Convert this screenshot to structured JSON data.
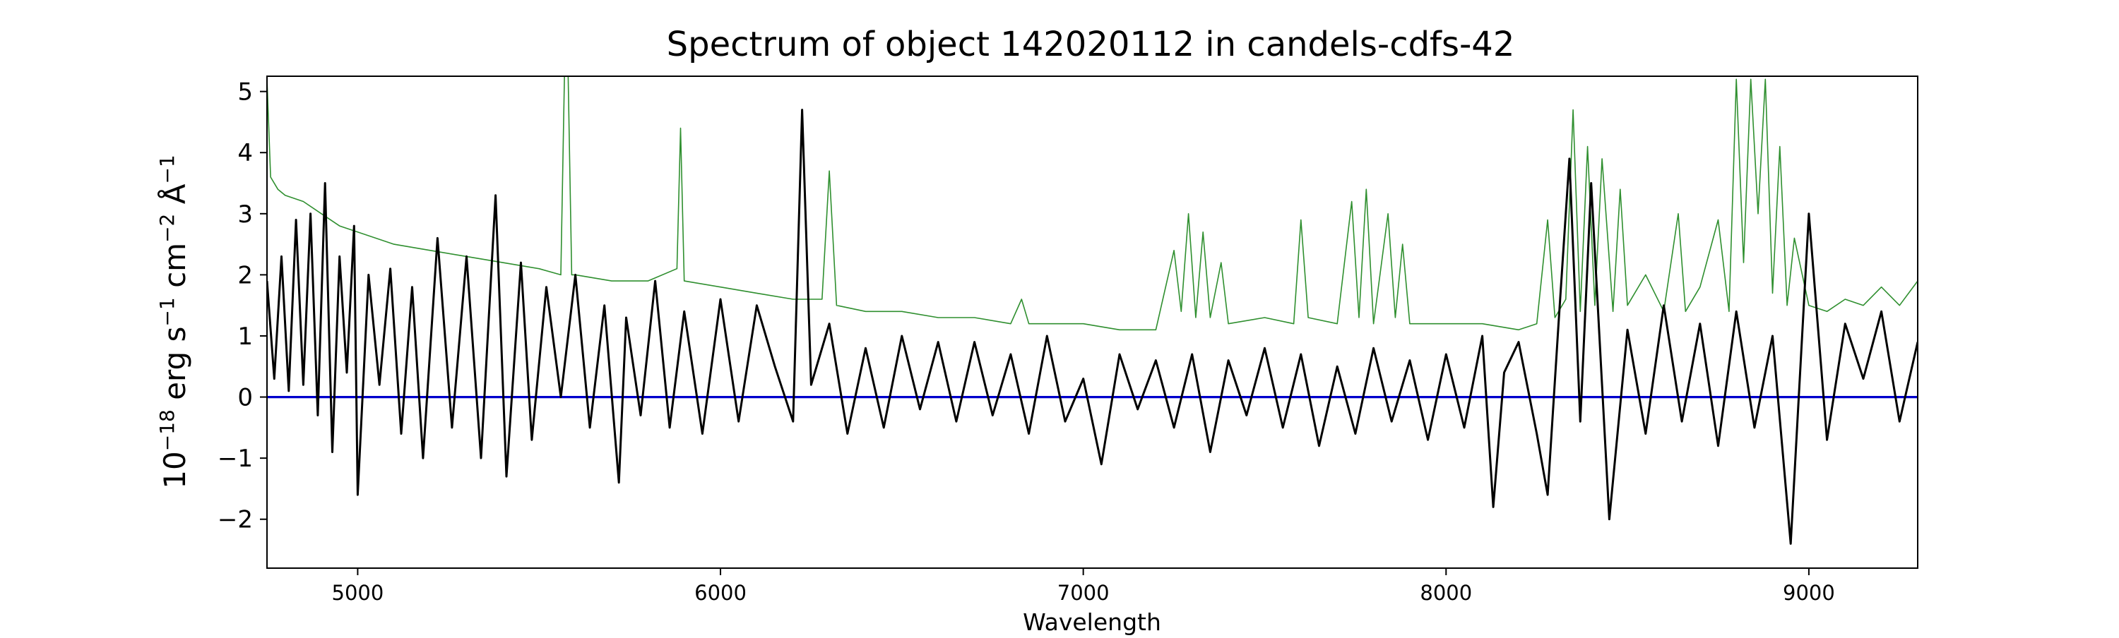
{
  "chart_data": {
    "type": "line",
    "title": "Spectrum of object 142020112 in candels-cdfs-42",
    "xlabel": "Wavelength",
    "ylabel": {
      "base": "10",
      "exp1": "−18",
      "mid1": " erg s",
      "exp2": "−1",
      "mid2": " cm",
      "exp3": "−2",
      "mid3": " Å",
      "exp4": "−1"
    },
    "xlim": [
      4750,
      9300
    ],
    "ylim": [
      -2.8,
      5.25
    ],
    "xticks": [
      5000,
      6000,
      7000,
      8000,
      9000
    ],
    "yticks": [
      -2,
      -1,
      0,
      1,
      2,
      3,
      4,
      5
    ],
    "ytick_labels": [
      "−2",
      "−1",
      "0",
      "1",
      "2",
      "3",
      "4",
      "5"
    ],
    "grid": false,
    "legend": false,
    "series": [
      {
        "role": "flux",
        "color": "#000000",
        "x": [
          4750,
          4770,
          4790,
          4810,
          4830,
          4850,
          4870,
          4890,
          4910,
          4930,
          4950,
          4970,
          4990,
          5000,
          5030,
          5060,
          5090,
          5120,
          5150,
          5180,
          5220,
          5260,
          5300,
          5340,
          5380,
          5410,
          5450,
          5480,
          5520,
          5560,
          5600,
          5640,
          5680,
          5720,
          5740,
          5780,
          5820,
          5860,
          5900,
          5950,
          6000,
          6050,
          6100,
          6150,
          6200,
          6225,
          6250,
          6300,
          6350,
          6400,
          6450,
          6500,
          6550,
          6600,
          6650,
          6700,
          6750,
          6800,
          6850,
          6900,
          6950,
          7000,
          7050,
          7100,
          7150,
          7200,
          7250,
          7300,
          7350,
          7400,
          7450,
          7500,
          7550,
          7600,
          7650,
          7700,
          7750,
          7800,
          7850,
          7900,
          7950,
          8000,
          8050,
          8100,
          8130,
          8160,
          8200,
          8250,
          8280,
          8310,
          8340,
          8370,
          8400,
          8430,
          8450,
          8500,
          8550,
          8600,
          8650,
          8700,
          8750,
          8800,
          8850,
          8900,
          8950,
          9000,
          9050,
          9100,
          9150,
          9200,
          9250,
          9300
        ],
        "y": [
          1.9,
          0.3,
          2.3,
          0.1,
          2.9,
          0.2,
          3.0,
          -0.3,
          3.5,
          -0.9,
          2.3,
          0.4,
          2.8,
          -1.6,
          2.0,
          0.2,
          2.1,
          -0.6,
          1.8,
          -1.0,
          2.6,
          -0.5,
          2.3,
          -1.0,
          3.3,
          -1.3,
          2.2,
          -0.7,
          1.8,
          0.0,
          2.0,
          -0.5,
          1.5,
          -1.4,
          1.3,
          -0.3,
          1.9,
          -0.5,
          1.4,
          -0.6,
          1.6,
          -0.4,
          1.5,
          0.5,
          -0.4,
          4.7,
          0.2,
          1.2,
          -0.6,
          0.8,
          -0.5,
          1.0,
          -0.2,
          0.9,
          -0.4,
          0.9,
          -0.3,
          0.7,
          -0.6,
          1.0,
          -0.4,
          0.3,
          -1.1,
          0.7,
          -0.2,
          0.6,
          -0.5,
          0.7,
          -0.9,
          0.6,
          -0.3,
          0.8,
          -0.5,
          0.7,
          -0.8,
          0.5,
          -0.6,
          0.8,
          -0.4,
          0.6,
          -0.7,
          0.7,
          -0.5,
          1.0,
          -1.8,
          0.4,
          0.9,
          -0.6,
          -1.6,
          1.2,
          3.9,
          -0.4,
          3.5,
          0.2,
          -2.0,
          1.1,
          -0.6,
          1.5,
          -0.4,
          1.2,
          -0.8,
          1.4,
          -0.5,
          1.0,
          -2.4,
          3.0,
          -0.7,
          1.2,
          0.3,
          1.4,
          -0.4,
          0.9
        ]
      },
      {
        "role": "noise",
        "color": "#2f8f2f",
        "x": [
          4750,
          4760,
          4780,
          4800,
          4850,
          4900,
          4950,
          5000,
          5100,
          5200,
          5300,
          5400,
          5500,
          5560,
          5570,
          5580,
          5590,
          5600,
          5700,
          5800,
          5880,
          5890,
          5900,
          6000,
          6100,
          6200,
          6280,
          6300,
          6320,
          6400,
          6500,
          6600,
          6700,
          6800,
          6830,
          6850,
          6900,
          7000,
          7100,
          7200,
          7250,
          7270,
          7290,
          7310,
          7330,
          7350,
          7380,
          7400,
          7500,
          7580,
          7600,
          7620,
          7700,
          7740,
          7760,
          7780,
          7800,
          7840,
          7860,
          7880,
          7900,
          8000,
          8100,
          8200,
          8250,
          8280,
          8300,
          8330,
          8350,
          8370,
          8390,
          8410,
          8430,
          8460,
          8480,
          8500,
          8550,
          8600,
          8640,
          8660,
          8700,
          8750,
          8780,
          8800,
          8820,
          8840,
          8860,
          8880,
          8900,
          8920,
          8940,
          8960,
          9000,
          9050,
          9100,
          9150,
          9200,
          9250,
          9300
        ],
        "y": [
          5.2,
          3.6,
          3.4,
          3.3,
          3.2,
          3.0,
          2.8,
          2.7,
          2.5,
          2.4,
          2.3,
          2.2,
          2.1,
          2.0,
          5.3,
          5.3,
          2.0,
          2.0,
          1.9,
          1.9,
          2.1,
          4.4,
          1.9,
          1.8,
          1.7,
          1.6,
          1.6,
          3.7,
          1.5,
          1.4,
          1.4,
          1.3,
          1.3,
          1.2,
          1.6,
          1.2,
          1.2,
          1.2,
          1.1,
          1.1,
          2.4,
          1.4,
          3.0,
          1.3,
          2.7,
          1.3,
          2.2,
          1.2,
          1.3,
          1.2,
          2.9,
          1.3,
          1.2,
          3.2,
          1.3,
          3.4,
          1.2,
          3.0,
          1.3,
          2.5,
          1.2,
          1.2,
          1.2,
          1.1,
          1.2,
          2.9,
          1.3,
          1.6,
          4.7,
          1.4,
          4.1,
          1.5,
          3.9,
          1.4,
          3.4,
          1.5,
          2.0,
          1.4,
          3.0,
          1.4,
          1.8,
          2.9,
          1.4,
          5.2,
          2.2,
          5.2,
          3.0,
          5.2,
          1.7,
          4.1,
          1.5,
          2.6,
          1.5,
          1.4,
          1.6,
          1.5,
          1.8,
          1.5,
          1.9
        ]
      },
      {
        "role": "zero",
        "color": "#0000cc",
        "x": [
          4750,
          9300
        ],
        "y": [
          0,
          0
        ]
      }
    ]
  }
}
